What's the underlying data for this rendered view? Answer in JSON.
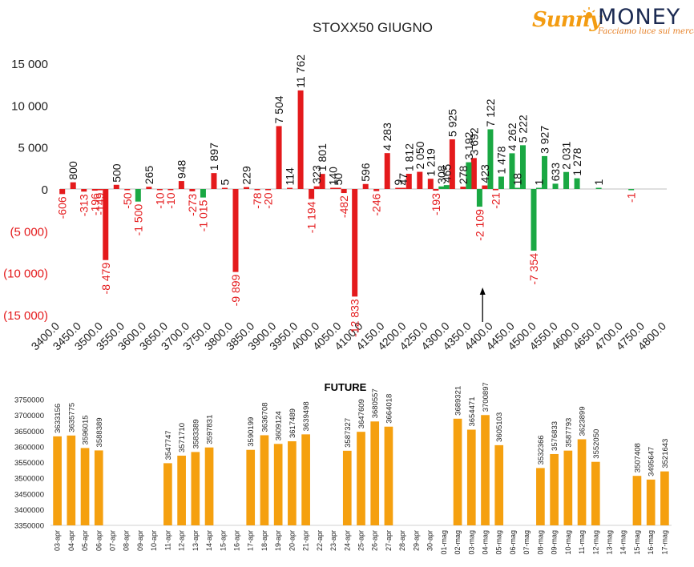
{
  "logo": {
    "brand_sun": "Sunny",
    "brand_money": "MONEY",
    "tagline": "Facciamo luce sui mercati"
  },
  "colors": {
    "positive_bar": "#e41a1c",
    "negative_bar": "#e41a1c",
    "green_bar": "#1aa843",
    "future_bar": "#f5a00f",
    "axis": "#595959",
    "neg_label": "#e41a1c"
  },
  "chart_data": [
    {
      "type": "bar",
      "title": "STOXX50 GIUGNO",
      "ylim": [
        -15000,
        15000
      ],
      "y_ticks": [
        15000,
        10000,
        5000,
        0,
        -5000,
        -10000,
        -15000
      ],
      "y_tick_labels": [
        "15 000",
        "10 000",
        "5 000",
        "0",
        "(5 000)",
        "(10 000)",
        "(15 000)"
      ],
      "x_tick_labels": [
        "3400.0",
        "3450.0",
        "3500.0",
        "3550.0",
        "3600.0",
        "3650.0",
        "3700.0",
        "3750.0",
        "3800.0",
        "3850.0",
        "3900.0",
        "3950.0",
        "4000.0",
        "4050.0",
        "4100.0",
        "4150.0",
        "4200.0",
        "4250.0",
        "4300.0",
        "4350.0",
        "4400.0",
        "4450.0",
        "4500.0",
        "4550.0",
        "4600.0",
        "4650.0",
        "4700.0",
        "4750.0",
        "4800.0"
      ],
      "xlim": [
        3400,
        4800
      ],
      "grid": false,
      "legend": "none",
      "annotation": "arrow pointing up at 4375",
      "series": [
        {
          "color_key": "red",
          "points": [
            {
              "x": 3405,
              "v": -606,
              "label": "-606"
            },
            {
              "x": 3430,
              "v": 800,
              "label": "800"
            },
            {
              "x": 3455,
              "v": -313,
              "label": "-313"
            },
            {
              "x": 3480,
              "v": -196,
              "label": "-196"
            },
            {
              "x": 3492,
              "v": -149,
              "label": "-149"
            },
            {
              "x": 3505,
              "v": -8479,
              "label": "-8 479"
            },
            {
              "x": 3530,
              "v": 500,
              "label": "500"
            },
            {
              "x": 3555,
              "v": -50,
              "label": "-50"
            },
            {
              "x": 3605,
              "v": 265,
              "label": "265"
            },
            {
              "x": 3630,
              "v": -10,
              "label": "-10"
            },
            {
              "x": 3655,
              "v": -10,
              "label": "-10"
            },
            {
              "x": 3680,
              "v": 948,
              "label": "948"
            },
            {
              "x": 3705,
              "v": -273,
              "label": "-273"
            },
            {
              "x": 3755,
              "v": 1897,
              "label": "1 897"
            },
            {
              "x": 3780,
              "v": 5,
              "label": "5"
            },
            {
              "x": 3805,
              "v": -9899,
              "label": "-9 899"
            },
            {
              "x": 3830,
              "v": 229,
              "label": "229"
            },
            {
              "x": 3855,
              "v": -78,
              "label": "-78"
            },
            {
              "x": 3880,
              "v": -20,
              "label": "-20"
            },
            {
              "x": 3905,
              "v": 7504,
              "label": "7 504"
            },
            {
              "x": 3930,
              "v": 114,
              "label": "114"
            },
            {
              "x": 3955,
              "v": 11762,
              "label": "11 762"
            },
            {
              "x": 3980,
              "v": -1194,
              "label": "-1 194"
            },
            {
              "x": 3992,
              "v": 323,
              "label": "323"
            },
            {
              "x": 4005,
              "v": 1801,
              "label": "1 801"
            },
            {
              "x": 4030,
              "v": 140,
              "label": "140"
            },
            {
              "x": 4042,
              "v": 50,
              "label": "50"
            },
            {
              "x": 4055,
              "v": -482,
              "label": "-482"
            },
            {
              "x": 4080,
              "v": -12833,
              "label": "-12 833"
            },
            {
              "x": 4105,
              "v": 596,
              "label": "596"
            },
            {
              "x": 4130,
              "v": -246,
              "label": "-246"
            },
            {
              "x": 4155,
              "v": 4283,
              "label": "4 283"
            },
            {
              "x": 4180,
              "v": 9,
              "label": "9"
            },
            {
              "x": 4192,
              "v": 47,
              "label": "47"
            },
            {
              "x": 4205,
              "v": 1812,
              "label": "1 812"
            },
            {
              "x": 4230,
              "v": 2050,
              "label": "2 050"
            },
            {
              "x": 4255,
              "v": 1219,
              "label": "1 219"
            },
            {
              "x": 4267,
              "v": -193,
              "label": "-193"
            },
            {
              "x": 4305,
              "v": 5925,
              "label": "5 925"
            },
            {
              "x": 4330,
              "v": 278,
              "label": "278"
            },
            {
              "x": 4355,
              "v": 3692,
              "label": "3 692"
            },
            {
              "x": 4380,
              "v": 423,
              "label": "423"
            },
            {
              "x": 4405,
              "v": -21,
              "label": "-21"
            }
          ]
        },
        {
          "color_key": "green",
          "points": [
            {
              "x": 3580,
              "v": -1500,
              "label": "-1 500"
            },
            {
              "x": 3730,
              "v": -1015,
              "label": "-1 015"
            },
            {
              "x": 4280,
              "v": 308,
              "label": "308"
            },
            {
              "x": 4292,
              "v": 465,
              "label": "465"
            },
            {
              "x": 4343,
              "v": 3192,
              "label": "3 192"
            },
            {
              "x": 4368,
              "v": -2109,
              "label": "-2 109"
            },
            {
              "x": 4393,
              "v": 7122,
              "label": "7 122"
            },
            {
              "x": 4418,
              "v": 1478,
              "label": "1 478"
            },
            {
              "x": 4443,
              "v": 4262,
              "label": "4 262"
            },
            {
              "x": 4455,
              "v": 18,
              "label": "18"
            },
            {
              "x": 4468,
              "v": 5222,
              "label": "5 222"
            },
            {
              "x": 4493,
              "v": -7354,
              "label": "-7 354"
            },
            {
              "x": 4505,
              "v": 1,
              "label": "1"
            },
            {
              "x": 4518,
              "v": 3927,
              "label": "3 927"
            },
            {
              "x": 4543,
              "v": 633,
              "label": "633"
            },
            {
              "x": 4568,
              "v": 2031,
              "label": "2 031"
            },
            {
              "x": 4593,
              "v": 1278,
              "label": "1 278"
            },
            {
              "x": 4643,
              "v": 1,
              "label": "1"
            },
            {
              "x": 4718,
              "v": -1,
              "label": "-1"
            }
          ]
        }
      ]
    },
    {
      "type": "bar",
      "title": "FUTURE",
      "ylim": [
        3350000,
        3750000
      ],
      "y_ticks": [
        3750000,
        3700000,
        3650000,
        3600000,
        3550000,
        3500000,
        3450000,
        3400000,
        3350000
      ],
      "categories": [
        "03-apr",
        "04-apr",
        "05-apr",
        "06-apr",
        "07-apr",
        "08-apr",
        "09-apr",
        "10-apr",
        "11-apr",
        "12-apr",
        "13-apr",
        "14-apr",
        "15-apr",
        "16-apr",
        "17-apr",
        "18-apr",
        "19-apr",
        "20-apr",
        "21-apr",
        "22-apr",
        "23-apr",
        "24-apr",
        "25-apr",
        "26-apr",
        "27-apr",
        "28-apr",
        "29-apr",
        "30-apr",
        "01-mag",
        "02-mag",
        "03-mag",
        "04-mag",
        "05-mag",
        "06-mag",
        "07-mag",
        "08-mag",
        "09-mag",
        "10-mag",
        "11-mag",
        "12-mag",
        "13-mag",
        "14-mag",
        "15-mag",
        "16-mag",
        "17-mag"
      ],
      "values": [
        3633156,
        3635775,
        3596015,
        3588389,
        null,
        null,
        null,
        null,
        3547747,
        3571710,
        3583389,
        3597831,
        null,
        null,
        3590199,
        3636708,
        3609124,
        3617489,
        3639498,
        null,
        null,
        3587327,
        3647609,
        3680557,
        3664018,
        null,
        null,
        null,
        null,
        3689321,
        3654471,
        3700897,
        3605103,
        null,
        null,
        3532366,
        3576833,
        3587793,
        3623899,
        3552050,
        null,
        null,
        3507408,
        3495647,
        3521643
      ],
      "grid": false,
      "legend": "none"
    }
  ]
}
